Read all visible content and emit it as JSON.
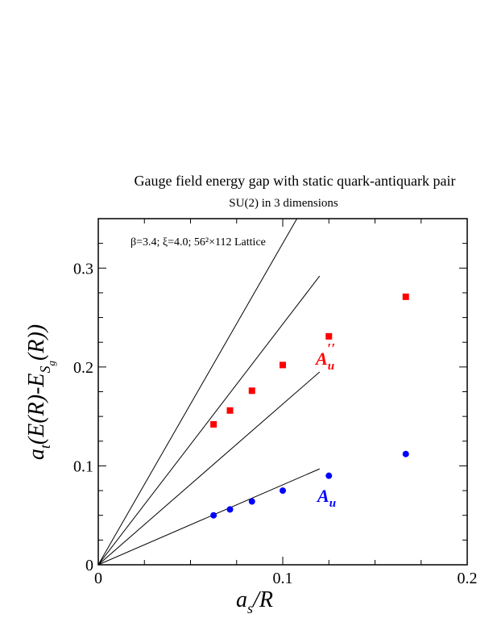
{
  "chart_data": {
    "type": "scatter",
    "title": "Gauge field energy gap with static quark-antiquark pair",
    "subtitle": "SU(2) in 3 dimensions",
    "xlabel": "a_s/R",
    "ylabel": "a_t(E(R)-E_Sg(R))",
    "xlim": [
      0,
      0.2
    ],
    "ylim": [
      0,
      0.35
    ],
    "x_ticks": [
      "0",
      "0.1",
      "0.2"
    ],
    "y_ticks": [
      "0",
      "0.1",
      "0.2",
      "0.3"
    ],
    "x_tick_values": [
      0,
      0.1,
      0.2
    ],
    "y_tick_values": [
      0,
      0.1,
      0.2,
      0.3
    ],
    "annotation": "β=3.4; ξ=4.0; 56²×112 Lattice",
    "grid": false,
    "series": [
      {
        "name": "A_u''",
        "color": "#ff0000",
        "marker": "square",
        "x": [
          0.0625,
          0.0714,
          0.0833,
          0.1,
          0.125,
          0.1667
        ],
        "y": [
          0.142,
          0.156,
          0.176,
          0.202,
          0.231,
          0.271
        ]
      },
      {
        "name": "A_u",
        "color": "#0000ff",
        "marker": "circle",
        "x": [
          0.0625,
          0.0714,
          0.0833,
          0.1,
          0.125,
          0.1667
        ],
        "y": [
          0.05,
          0.056,
          0.064,
          0.075,
          0.09,
          0.112
        ]
      }
    ],
    "lines": [
      {
        "x": [
          0,
          0.12
        ],
        "y": [
          0,
          0.097
        ]
      },
      {
        "x": [
          0,
          0.12
        ],
        "y": [
          0,
          0.195
        ]
      },
      {
        "x": [
          0,
          0.12
        ],
        "y": [
          0,
          0.292
        ]
      },
      {
        "x": [
          0,
          0.12
        ],
        "y": [
          0,
          0.39
        ]
      }
    ]
  }
}
